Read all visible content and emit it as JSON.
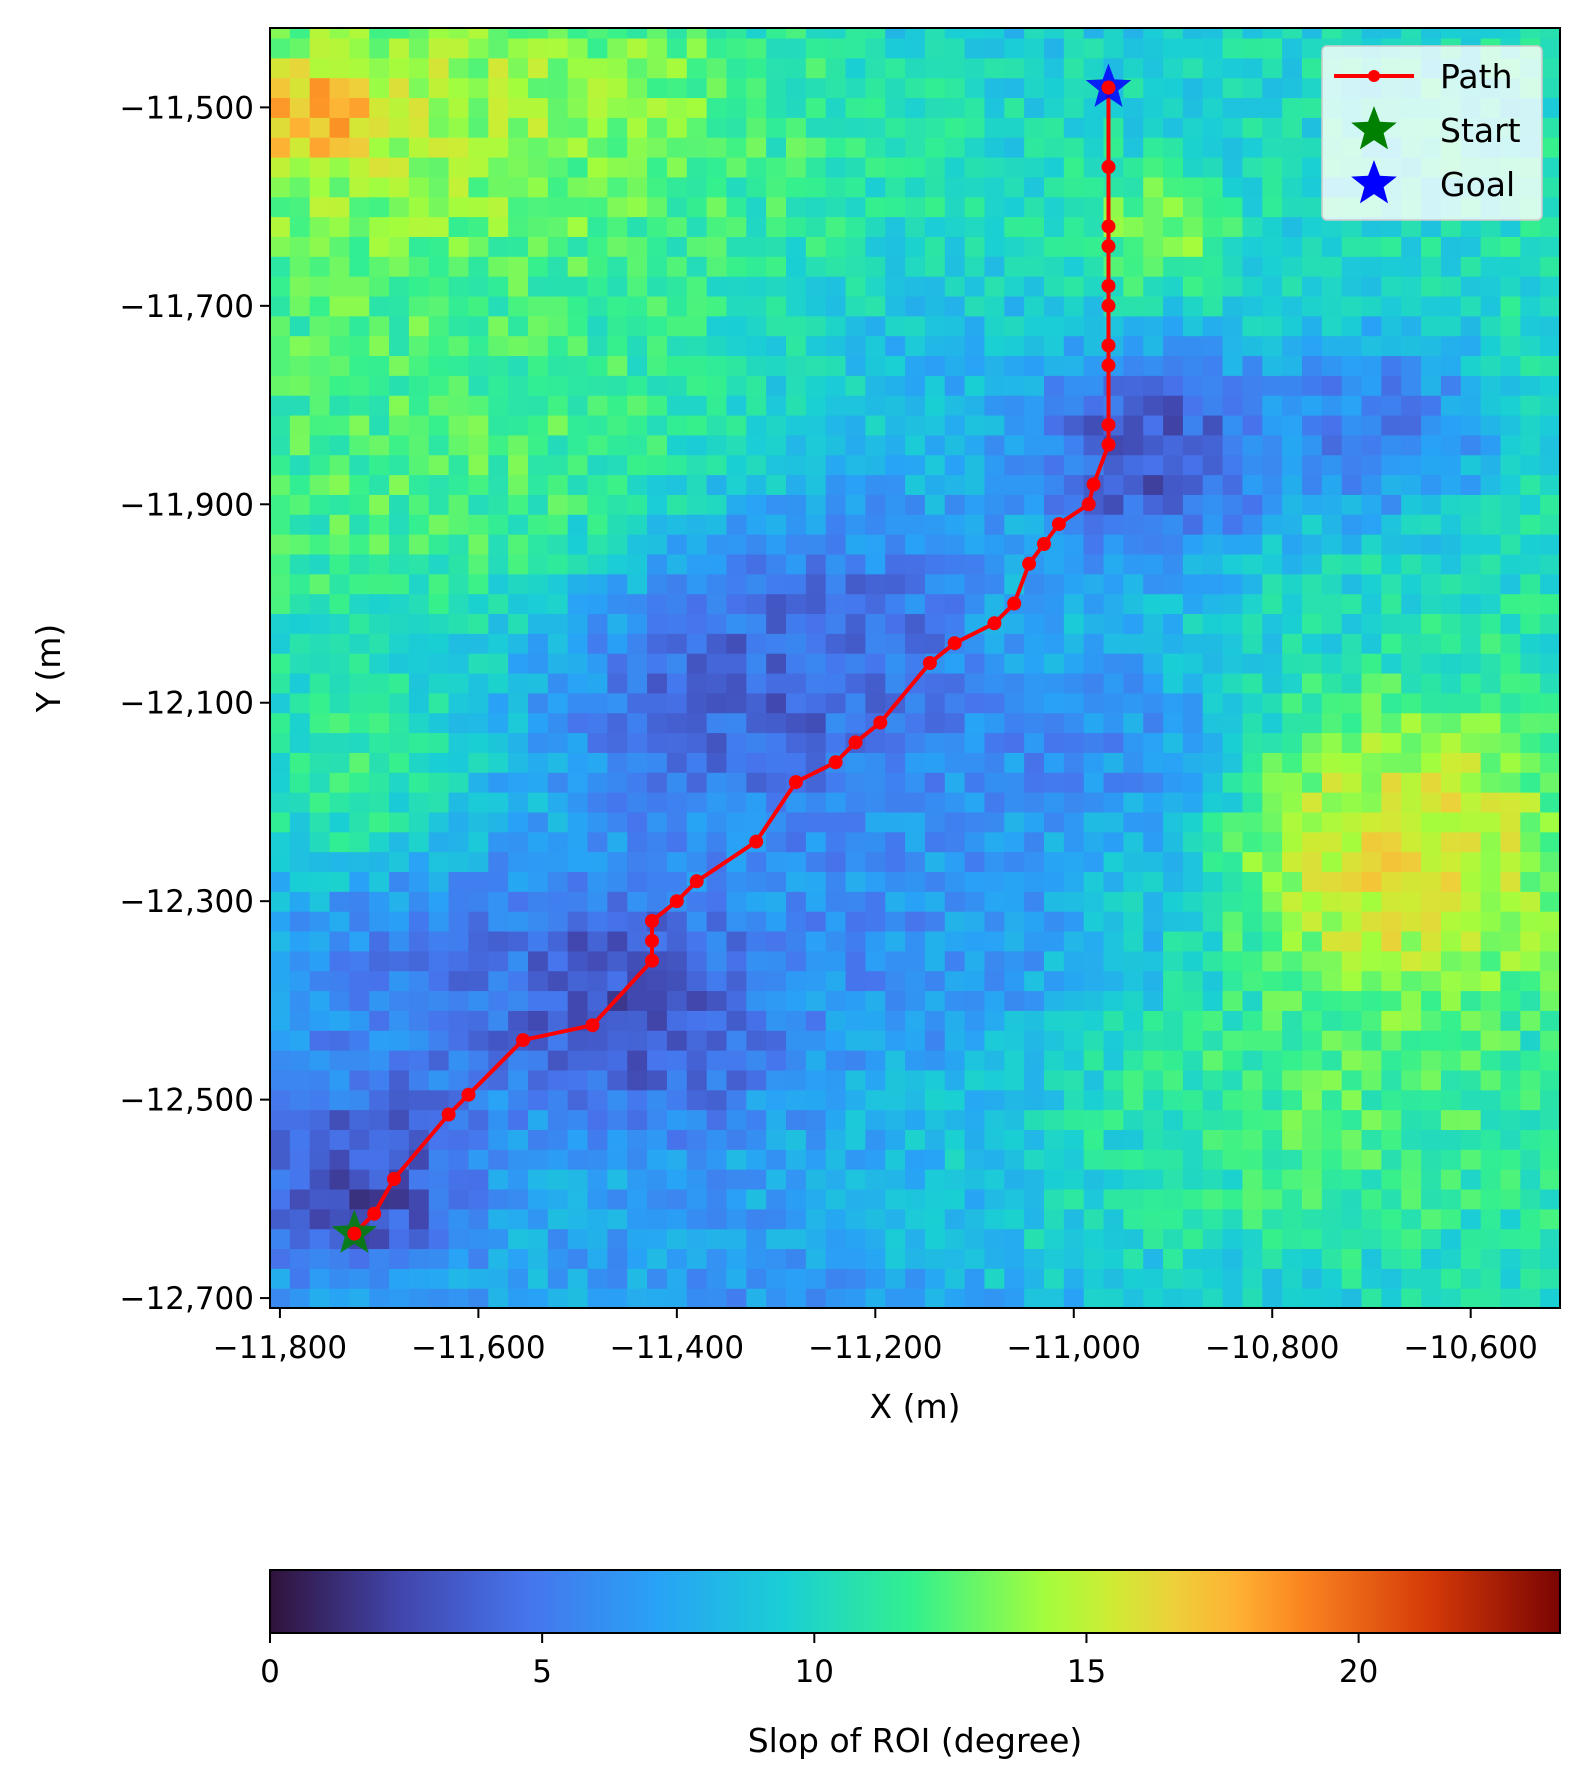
{
  "chart_data": {
    "type": "heatmap",
    "title": "",
    "xlabel": "X (m)",
    "ylabel": "Y (m)",
    "xlim": [
      -11810,
      -10510
    ],
    "ylim": [
      -12710,
      -11420
    ],
    "x_ticks": [
      -11800,
      -11600,
      -11400,
      -11200,
      -11000,
      -10800,
      -10600
    ],
    "x_tick_labels": [
      "−11,800",
      "−11,600",
      "−11,400",
      "−11,200",
      "−11,000",
      "−10,800",
      "−10,600"
    ],
    "y_ticks": [
      -11500,
      -11700,
      -11900,
      -12100,
      -12300,
      -12500,
      -12700
    ],
    "y_tick_labels": [
      "−11,500",
      "−11,700",
      "−11,900",
      "−12,100",
      "−12,300",
      "−12,500",
      "−12,700"
    ],
    "grid": false,
    "legend": {
      "placement": "top-right",
      "entries": [
        {
          "label": "Path",
          "color": "#ff0000",
          "marker": "line-dot"
        },
        {
          "label": "Start",
          "color": "#008000",
          "marker": "star"
        },
        {
          "label": "Goal",
          "color": "#0000ff",
          "marker": "star"
        }
      ]
    },
    "colorbar": {
      "label": "Slop of ROI (degree)",
      "range": [
        0,
        23.7
      ],
      "ticks": [
        0,
        5,
        10,
        15,
        20
      ],
      "tick_labels": [
        "0",
        "5",
        "10",
        "15",
        "20"
      ],
      "colormap": "turbo"
    },
    "heatmap_grid": {
      "cell_size": 20,
      "regions": [
        {
          "x": -11550,
          "y": -11530,
          "sx": 260,
          "sy": 110,
          "v": 16
        },
        {
          "x": -11760,
          "y": -11510,
          "sx": 60,
          "sy": 40,
          "v": 21
        },
        {
          "x": -11550,
          "y": -11850,
          "sx": 220,
          "sy": 150,
          "v": 13
        },
        {
          "x": -11720,
          "y": -12170,
          "sx": 70,
          "sy": 80,
          "v": 12
        },
        {
          "x": -11300,
          "y": -11580,
          "sx": 280,
          "sy": 90,
          "v": 11
        },
        {
          "x": -10920,
          "y": -11620,
          "sx": 60,
          "sy": 50,
          "v": 15
        },
        {
          "x": -11720,
          "y": -12580,
          "sx": 90,
          "sy": 80,
          "v": 1
        },
        {
          "x": -11450,
          "y": -12400,
          "sx": 110,
          "sy": 90,
          "v": 1.5
        },
        {
          "x": -11330,
          "y": -12050,
          "sx": 170,
          "sy": 130,
          "v": 2.5
        },
        {
          "x": -10920,
          "y": -11850,
          "sx": 90,
          "sy": 80,
          "v": 1.5
        },
        {
          "x": -10700,
          "y": -11820,
          "sx": 100,
          "sy": 70,
          "v": 4
        },
        {
          "x": -11000,
          "y": -12150,
          "sx": 120,
          "sy": 70,
          "v": 5.5
        },
        {
          "x": -10670,
          "y": -12260,
          "sx": 130,
          "sy": 120,
          "v": 17.5
        },
        {
          "x": -10780,
          "y": -12520,
          "sx": 170,
          "sy": 100,
          "v": 13
        },
        {
          "x": -11000,
          "y": -12580,
          "sx": 160,
          "sy": 90,
          "v": 10.5
        },
        {
          "x": -11150,
          "y": -12580,
          "sx": 110,
          "sy": 70,
          "v": 8
        },
        {
          "x": -11200,
          "y": -12320,
          "sx": 120,
          "sy": 100,
          "v": 6
        },
        {
          "x": -11650,
          "y": -12380,
          "sx": 130,
          "sy": 100,
          "v": 4
        }
      ]
    },
    "path": {
      "name": "Path",
      "x": [
        -11725,
        -11705,
        -11685,
        -11630,
        -11610,
        -11555,
        -11485,
        -11425,
        -11425,
        -11425,
        -11400,
        -11380,
        -11320,
        -11280,
        -11240,
        -11220,
        -11195,
        -11145,
        -11120,
        -11080,
        -11060,
        -11045,
        -11030,
        -11015,
        -10985,
        -10980,
        -10965,
        -10965,
        -10965,
        -10965,
        -10965,
        -10965,
        -10965,
        -10965,
        -10965,
        -10965
      ],
      "y": [
        -12635,
        -12615,
        -12580,
        -12515,
        -12495,
        -12440,
        -12425,
        -12360,
        -12340,
        -12320,
        -12300,
        -12280,
        -12240,
        -12180,
        -12160,
        -12140,
        -12120,
        -12060,
        -12040,
        -12020,
        -12000,
        -11960,
        -11940,
        -11920,
        -11900,
        -11880,
        -11840,
        -11820,
        -11760,
        -11740,
        -11700,
        -11680,
        -11640,
        -11620,
        -11560,
        -11480
      ],
      "color": "#ff0000"
    },
    "start": {
      "x": -11725,
      "y": -12635
    },
    "goal": {
      "x": -10965,
      "y": -11480
    }
  }
}
